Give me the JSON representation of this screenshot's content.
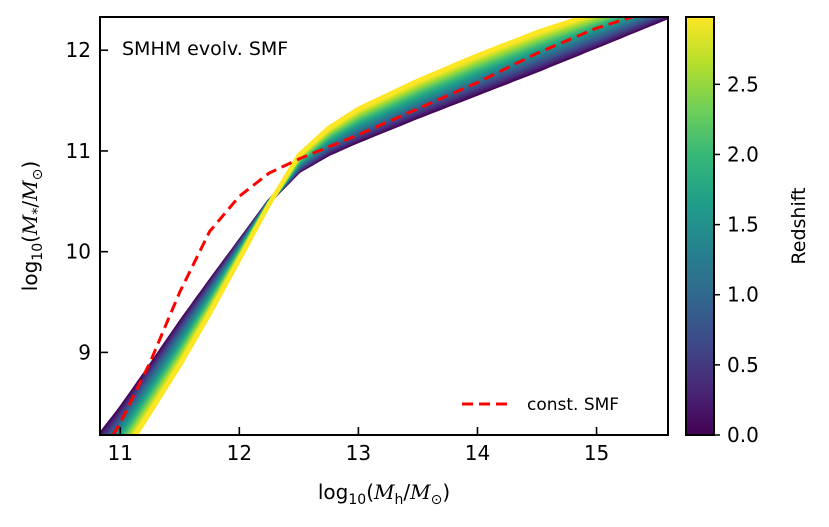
{
  "chart_data": {
    "type": "line",
    "annotation": "SMHM evolv. SMF",
    "xlabel": {
      "prefix": "log",
      "sub": "10",
      "open": "(",
      "M": "M",
      "msub": "h",
      "slash": "/",
      "M2": "M",
      "sun": "⊙",
      "close": ")"
    },
    "ylabel": {
      "prefix": "log",
      "sub": "10",
      "open": "(",
      "M": "M",
      "msub": "*",
      "slash": "/",
      "M2": "M",
      "sun": "⊙",
      "close": ")"
    },
    "xlim": [
      10.83,
      15.6
    ],
    "ylim": [
      8.18,
      12.33
    ],
    "xticks": [
      11,
      12,
      13,
      14,
      15
    ],
    "yticks": [
      9,
      10,
      11,
      12
    ],
    "xtick_labels": [
      "11",
      "12",
      "13",
      "14",
      "15"
    ],
    "ytick_labels": [
      "9",
      "10",
      "11",
      "12"
    ],
    "colorbar": {
      "label": "Redshift",
      "range": [
        0.0,
        2.98
      ],
      "ticks": [
        0.0,
        0.5,
        1.0,
        1.5,
        2.0,
        2.5
      ],
      "tick_labels": [
        "0.0",
        "0.5",
        "1.0",
        "1.5",
        "2.0",
        "2.5"
      ],
      "colormap": [
        "#440154",
        "#482878",
        "#3e4a89",
        "#31688e",
        "#26828e",
        "#1f9e89",
        "#35b779",
        "#6ece58",
        "#b5de2b",
        "#fde725"
      ]
    },
    "family": {
      "redshift_samples": [
        0.0,
        0.25,
        0.5,
        0.75,
        1.0,
        1.25,
        1.5,
        1.75,
        2.0,
        2.25,
        2.5,
        2.75,
        2.98
      ],
      "z0_curve": {
        "x": [
          10.83,
          11.0,
          11.25,
          11.5,
          11.75,
          12.0,
          12.25,
          12.5,
          12.75,
          13.0,
          13.5,
          14.0,
          14.5,
          15.0,
          15.6
        ],
        "y": [
          8.18,
          8.44,
          8.86,
          9.29,
          9.7,
          10.1,
          10.5,
          10.8,
          10.97,
          11.1,
          11.34,
          11.57,
          11.8,
          12.04,
          12.33
        ]
      },
      "z_max_curve": {
        "x": [
          11.13,
          11.25,
          11.5,
          11.75,
          12.0,
          12.25,
          12.5,
          12.75,
          13.0,
          13.5,
          14.0,
          14.5,
          14.88
        ],
        "y": [
          8.18,
          8.4,
          8.87,
          9.38,
          9.92,
          10.47,
          10.96,
          11.23,
          11.42,
          11.7,
          11.95,
          12.18,
          12.33
        ]
      }
    },
    "series": [
      {
        "name": "const. SMF",
        "color": "#ff0000",
        "style": "dashed",
        "x": [
          10.94,
          11.0,
          11.25,
          11.5,
          11.75,
          12.0,
          12.25,
          12.5,
          12.75,
          13.0,
          13.5,
          14.0,
          14.5,
          15.0,
          15.3
        ],
        "y": [
          8.18,
          8.3,
          8.9,
          9.6,
          10.2,
          10.55,
          10.78,
          10.92,
          11.04,
          11.16,
          11.42,
          11.68,
          11.97,
          12.22,
          12.33
        ]
      }
    ],
    "legend": {
      "label": "const. SMF",
      "position": "lower-right"
    }
  }
}
